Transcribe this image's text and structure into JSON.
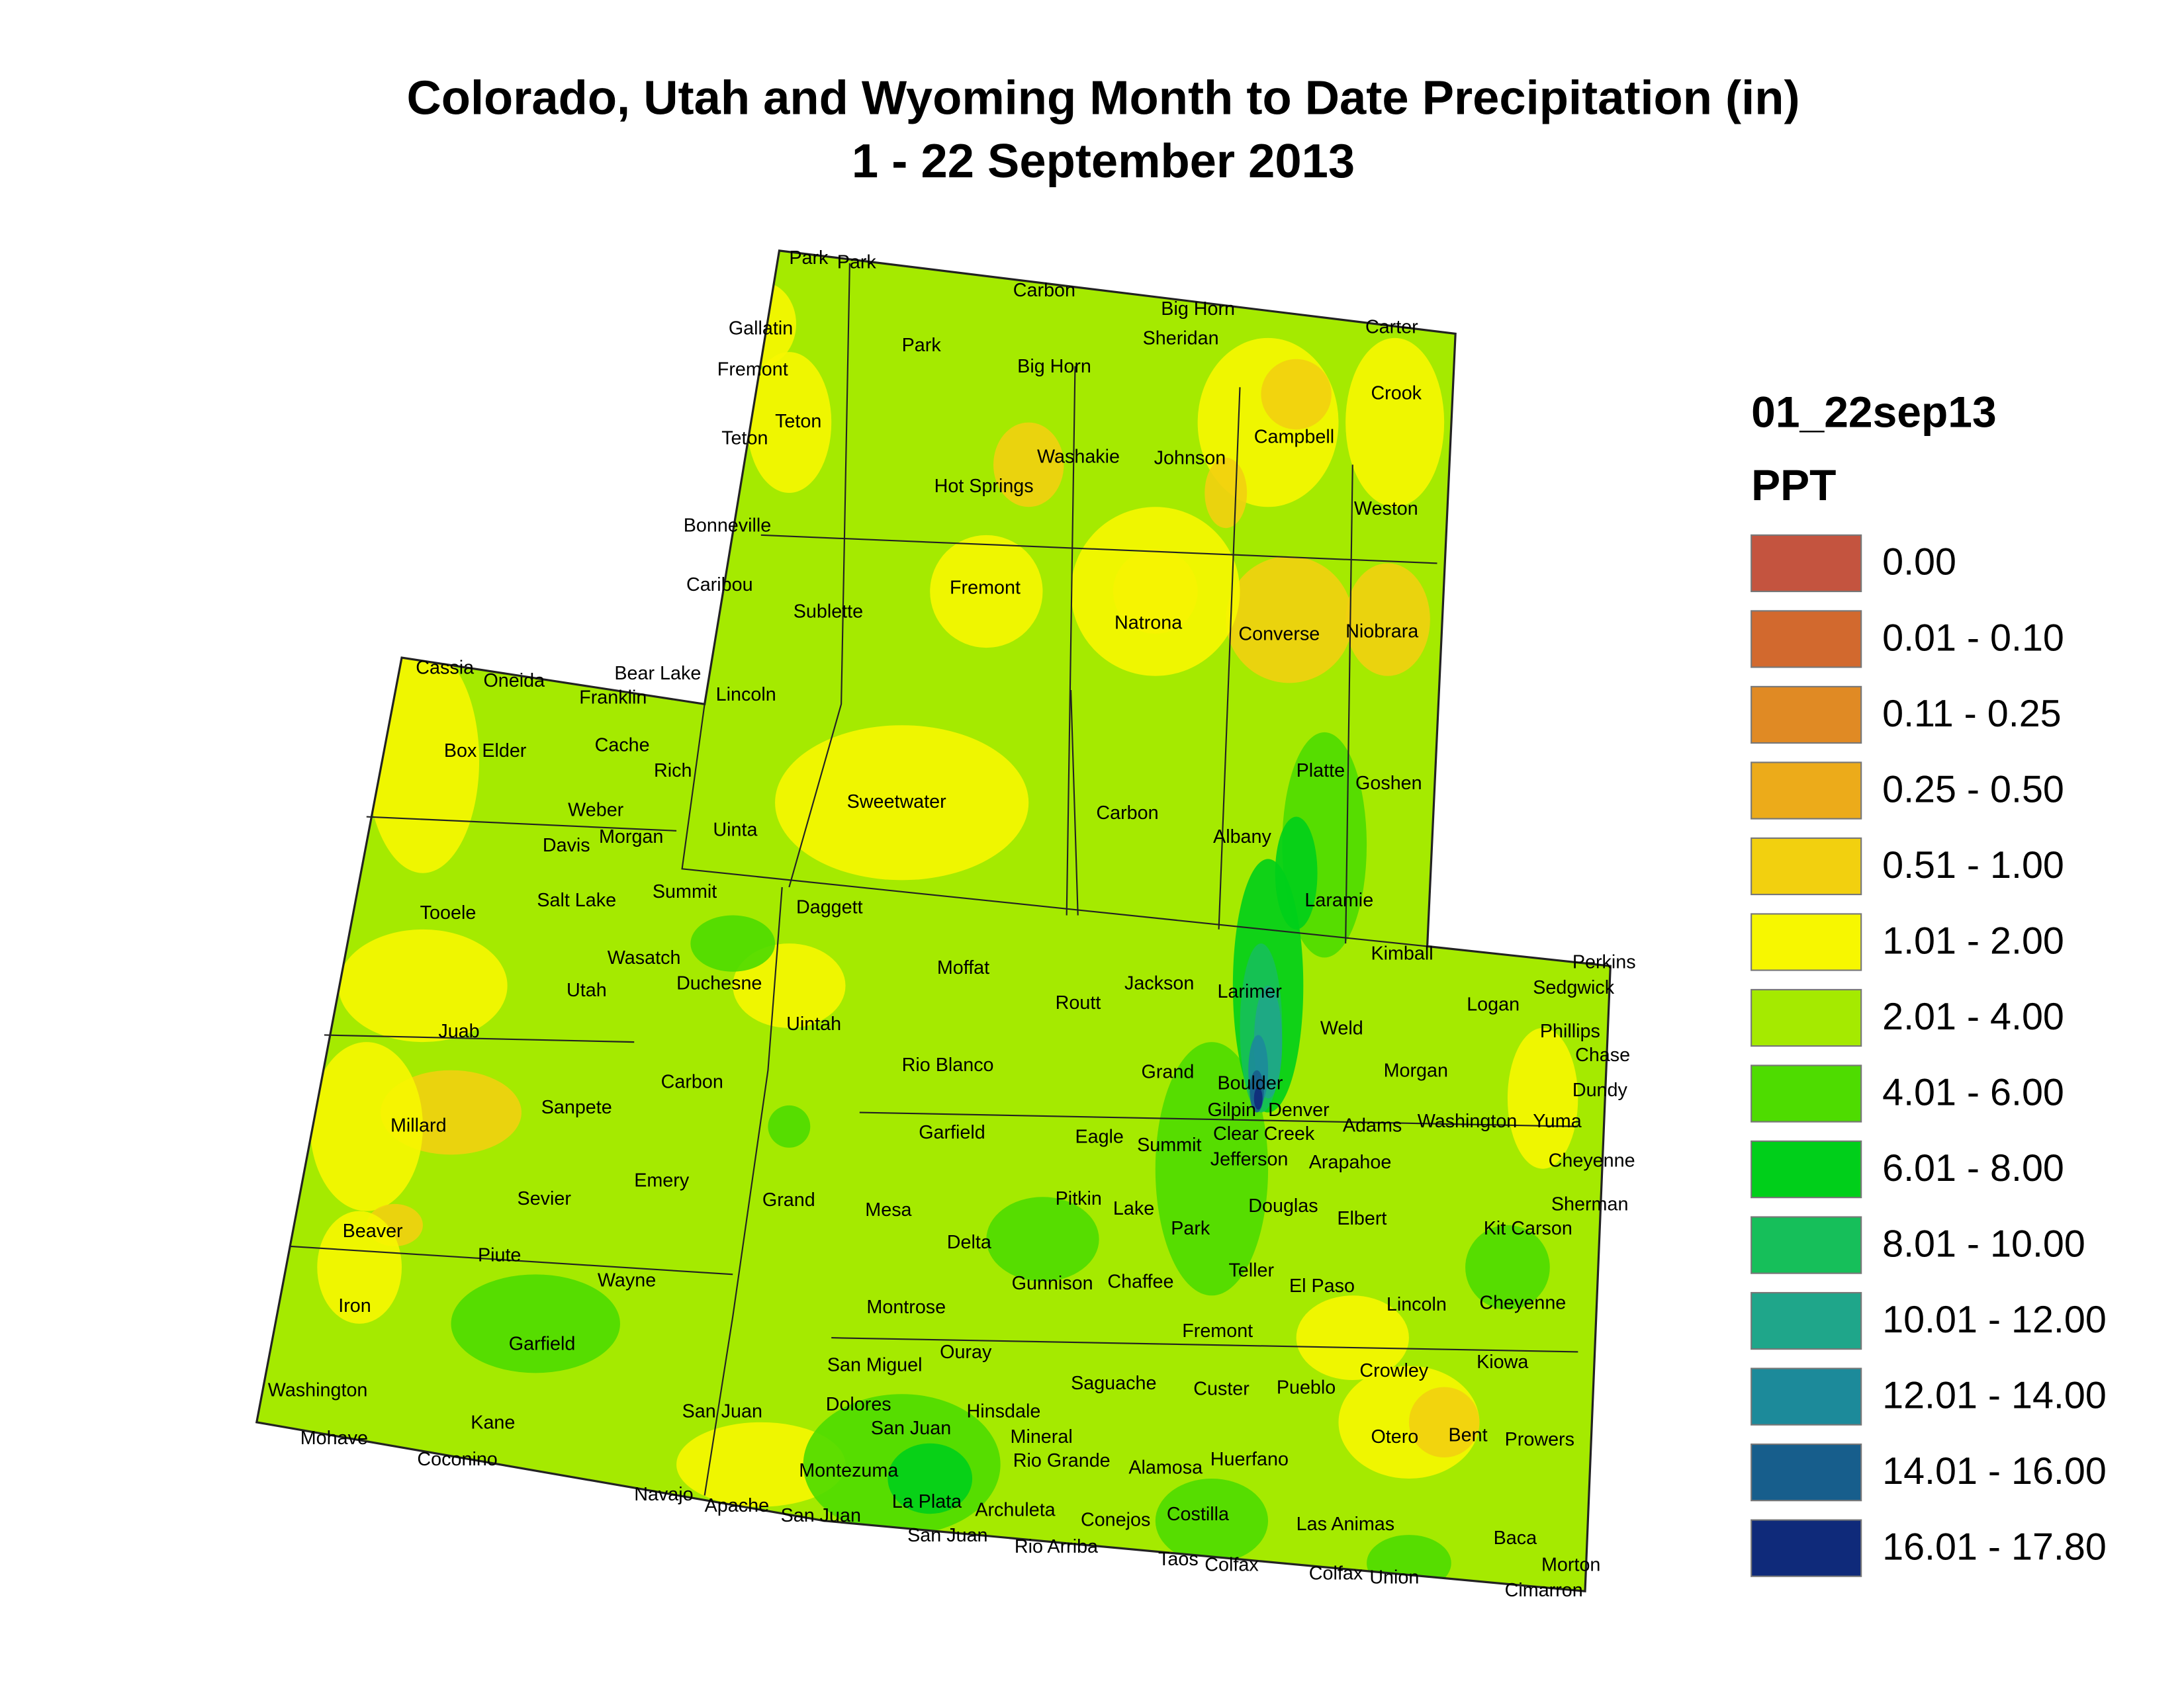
{
  "header": {
    "title": [
      "Colorado, Utah and Wyoming Month to Date Precipitation (in)",
      "1 - 22 September 2013"
    ]
  },
  "legend": {
    "title": "01_22sep13",
    "subtitle": "PPT",
    "items": [
      {
        "label": "0.00",
        "color": "#c4543f"
      },
      {
        "label": "0.01 - 0.10",
        "color": "#d2692e"
      },
      {
        "label": "0.11 - 0.25",
        "color": "#e08a24"
      },
      {
        "label": "0.25 - 0.50",
        "color": "#ecab1a"
      },
      {
        "label": "0.51 - 1.00",
        "color": "#f2d00f"
      },
      {
        "label": "1.01 - 2.00",
        "color": "#f7f700"
      },
      {
        "label": "2.01 - 4.00",
        "color": "#a5ea00"
      },
      {
        "label": "4.01 - 6.00",
        "color": "#4edc00"
      },
      {
        "label": "6.01 - 8.00",
        "color": "#00cf1a"
      },
      {
        "label": "8.01 - 10.00",
        "color": "#16bf5a"
      },
      {
        "label": "10.01 - 12.00",
        "color": "#1fa68a"
      },
      {
        "label": "12.01 - 14.00",
        "color": "#1c8a9a"
      },
      {
        "label": "14.01 - 16.00",
        "color": "#175e8c"
      },
      {
        "label": "16.01 - 17.80",
        "color": "#0f2a7a"
      }
    ]
  },
  "counties": [
    "Park",
    "Park",
    "Carbon",
    "Big Horn",
    "Sheridan",
    "Carter",
    "Gallatin",
    "Park",
    "Fremont",
    "Big Horn",
    "Crook",
    "Teton",
    "Teton",
    "Campbell",
    "Washakie",
    "Johnson",
    "Hot Springs",
    "Weston",
    "Bonneville",
    "Caribou",
    "Fremont",
    "Sublette",
    "Natrona",
    "Converse",
    "Niobrara",
    "Cassia",
    "Bear Lake",
    "Oneida",
    "Franklin",
    "Lincoln",
    "Box Elder",
    "Cache",
    "Platte",
    "Rich",
    "Goshen",
    "Sweetwater",
    "Weber",
    "Carbon",
    "Uinta",
    "Morgan",
    "Albany",
    "Davis",
    "Summit",
    "Salt Lake",
    "Laramie",
    "Daggett",
    "Tooele",
    "Kimball",
    "Perkins",
    "Moffat",
    "Wasatch",
    "Duchesne",
    "Jackson",
    "Sedgwick",
    "Larimer",
    "Utah",
    "Routt",
    "Logan",
    "Uintah",
    "Juab",
    "Weld",
    "Phillips",
    "Chase",
    "Rio Blanco",
    "Grand",
    "Morgan",
    "Boulder",
    "Carbon",
    "Dundy",
    "Gilpin",
    "Denver",
    "Sanpete",
    "Yuma",
    "Adams",
    "Washington",
    "Millard",
    "Clear Creek",
    "Garfield",
    "Eagle",
    "Summit",
    "Jefferson",
    "Arapahoe",
    "Cheyenne",
    "Emery",
    "Pitkin",
    "Grand",
    "Sevier",
    "Douglas",
    "Lake",
    "Mesa",
    "Sherman",
    "Elbert",
    "Park",
    "Kit Carson",
    "Beaver",
    "Delta",
    "Piute",
    "Wayne",
    "Gunnison",
    "Chaffee",
    "Teller",
    "El Paso",
    "Lincoln",
    "Cheyenne",
    "Iron",
    "Montrose",
    "Fremont",
    "Garfield",
    "Ouray",
    "San Miguel",
    "Kiowa",
    "Crowley",
    "Saguache",
    "Custer",
    "Pueblo",
    "Washington",
    "San Juan",
    "Dolores",
    "Hinsdale",
    "Kane",
    "San Juan",
    "Mineral",
    "Otero",
    "Bent",
    "Prowers",
    "Mohave",
    "Coconino",
    "Huerfano",
    "Rio Grande",
    "Alamosa",
    "Montezuma",
    "Navajo",
    "La Plata",
    "Apache",
    "Archuleta",
    "Costilla",
    "San Juan",
    "Conejos",
    "Las Animas",
    "San Juan",
    "Baca",
    "Rio Arriba",
    "Taos",
    "Colfax",
    "Morton",
    "Colfax",
    "Union",
    "Cimarron"
  ]
}
